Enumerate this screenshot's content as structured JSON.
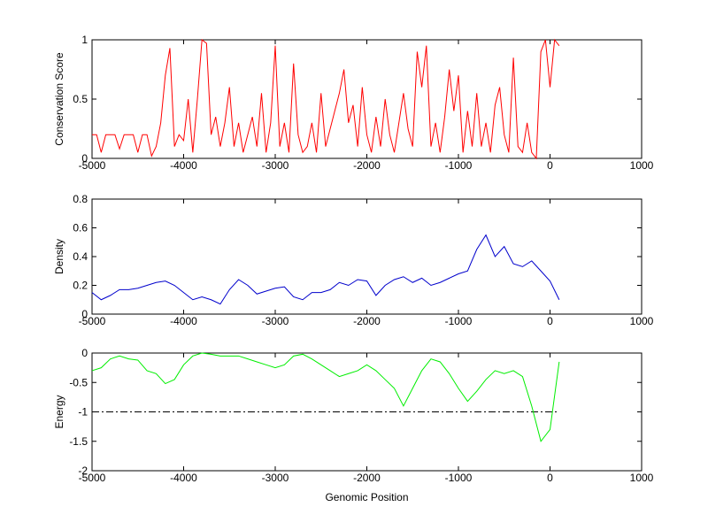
{
  "chart_data": [
    {
      "type": "line",
      "ylabel": "Conservation Score",
      "xlim": [
        -5000,
        1000
      ],
      "xticks": [
        -5000,
        -4000,
        -3000,
        -2000,
        -1000,
        0,
        1000
      ],
      "ylim": [
        0,
        1
      ],
      "yticks": [
        0,
        0.5,
        1
      ],
      "x": [
        -5000,
        -4950,
        -4900,
        -4850,
        -4800,
        -4750,
        -4700,
        -4650,
        -4600,
        -4550,
        -4500,
        -4450,
        -4400,
        -4350,
        -4300,
        -4250,
        -4200,
        -4150,
        -4100,
        -4050,
        -4000,
        -3950,
        -3900,
        -3850,
        -3800,
        -3750,
        -3700,
        -3650,
        -3600,
        -3550,
        -3500,
        -3450,
        -3400,
        -3350,
        -3300,
        -3250,
        -3200,
        -3150,
        -3100,
        -3050,
        -3000,
        -2950,
        -2900,
        -2850,
        -2800,
        -2750,
        -2700,
        -2650,
        -2600,
        -2550,
        -2500,
        -2450,
        -2400,
        -2350,
        -2300,
        -2250,
        -2200,
        -2150,
        -2100,
        -2050,
        -2000,
        -1950,
        -1900,
        -1850,
        -1800,
        -1750,
        -1700,
        -1650,
        -1600,
        -1550,
        -1500,
        -1450,
        -1400,
        -1350,
        -1300,
        -1250,
        -1200,
        -1150,
        -1100,
        -1050,
        -1000,
        -950,
        -900,
        -850,
        -800,
        -750,
        -700,
        -650,
        -600,
        -550,
        -500,
        -450,
        -400,
        -350,
        -300,
        -250,
        -200,
        -150,
        -100,
        -50,
        0,
        50,
        100
      ],
      "series": [
        {
          "color": "#ff0000",
          "values": [
            0.2,
            0.2,
            0.05,
            0.2,
            0.2,
            0.2,
            0.08,
            0.2,
            0.2,
            0.2,
            0.05,
            0.2,
            0.2,
            0.02,
            0.1,
            0.3,
            0.7,
            0.93,
            0.1,
            0.2,
            0.15,
            0.5,
            0.05,
            0.5,
            1,
            0.97,
            0.2,
            0.35,
            0.1,
            0.3,
            0.6,
            0.1,
            0.3,
            0.05,
            0.2,
            0.35,
            0.1,
            0.55,
            0.05,
            0.3,
            0.95,
            0.1,
            0.3,
            0.05,
            0.8,
            0.2,
            0.05,
            0.1,
            0.3,
            0.05,
            0.55,
            0.1,
            0.25,
            0.4,
            0.55,
            0.75,
            0.3,
            0.45,
            0.1,
            0.6,
            0.2,
            0.05,
            0.35,
            0.1,
            0.5,
            0.2,
            0.05,
            0.3,
            0.55,
            0.25,
            0.1,
            0.9,
            0.6,
            0.95,
            0.1,
            0.3,
            0.05,
            0.35,
            0.75,
            0.4,
            0.7,
            0.05,
            0.4,
            0.1,
            0.55,
            0.1,
            0.3,
            0.05,
            0.45,
            0.6,
            0.2,
            0.05,
            0.85,
            0.1,
            0.05,
            0.3,
            0.05,
            0,
            0.9,
            1,
            0.6,
            1,
            0.95
          ]
        }
      ]
    },
    {
      "type": "line",
      "ylabel": "Density",
      "xlim": [
        -5000,
        1000
      ],
      "xticks": [
        -5000,
        -4000,
        -3000,
        -2000,
        -1000,
        0,
        1000
      ],
      "ylim": [
        0,
        0.8
      ],
      "yticks": [
        0,
        0.2,
        0.4,
        0.6,
        0.8
      ],
      "x": [
        -5000,
        -4900,
        -4800,
        -4700,
        -4600,
        -4500,
        -4400,
        -4300,
        -4200,
        -4100,
        -4000,
        -3900,
        -3800,
        -3700,
        -3600,
        -3500,
        -3400,
        -3300,
        -3200,
        -3100,
        -3000,
        -2900,
        -2800,
        -2700,
        -2600,
        -2500,
        -2400,
        -2300,
        -2200,
        -2100,
        -2000,
        -1900,
        -1800,
        -1700,
        -1600,
        -1500,
        -1400,
        -1300,
        -1200,
        -1100,
        -1000,
        -900,
        -800,
        -700,
        -600,
        -500,
        -400,
        -300,
        -200,
        -100,
        0,
        100
      ],
      "series": [
        {
          "color": "#0000cc",
          "values": [
            0.15,
            0.1,
            0.13,
            0.17,
            0.17,
            0.18,
            0.2,
            0.22,
            0.23,
            0.2,
            0.15,
            0.1,
            0.12,
            0.1,
            0.07,
            0.17,
            0.24,
            0.2,
            0.14,
            0.16,
            0.18,
            0.19,
            0.12,
            0.1,
            0.15,
            0.15,
            0.17,
            0.22,
            0.2,
            0.24,
            0.23,
            0.13,
            0.2,
            0.24,
            0.26,
            0.22,
            0.25,
            0.2,
            0.22,
            0.25,
            0.28,
            0.3,
            0.45,
            0.55,
            0.4,
            0.47,
            0.35,
            0.33,
            0.37,
            0.3,
            0.23,
            0.1
          ]
        }
      ]
    },
    {
      "type": "line",
      "ylabel": "Energy",
      "xlabel": "Genomic Position",
      "xlim": [
        -5000,
        1000
      ],
      "xticks": [
        -5000,
        -4000,
        -3000,
        -2000,
        -1000,
        0,
        1000
      ],
      "ylim": [
        -2,
        0
      ],
      "yticks": [
        -2,
        -1.5,
        -1,
        -0.5,
        0
      ],
      "x": [
        -5000,
        -4900,
        -4800,
        -4700,
        -4600,
        -4500,
        -4400,
        -4300,
        -4200,
        -4100,
        -4000,
        -3900,
        -3800,
        -3700,
        -3600,
        -3500,
        -3400,
        -3300,
        -3200,
        -3100,
        -3000,
        -2900,
        -2800,
        -2700,
        -2600,
        -2500,
        -2400,
        -2300,
        -2200,
        -2100,
        -2000,
        -1900,
        -1800,
        -1700,
        -1600,
        -1500,
        -1400,
        -1300,
        -1200,
        -1100,
        -1000,
        -900,
        -800,
        -700,
        -600,
        -500,
        -400,
        -300,
        -200,
        -100,
        0,
        100
      ],
      "series": [
        {
          "color": "#00ee00",
          "values": [
            -0.3,
            -0.25,
            -0.1,
            -0.05,
            -0.1,
            -0.12,
            -0.3,
            -0.35,
            -0.52,
            -0.45,
            -0.2,
            -0.05,
            0,
            -0.02,
            -0.05,
            -0.05,
            -0.05,
            -0.1,
            -0.15,
            -0.2,
            -0.25,
            -0.2,
            -0.05,
            -0.02,
            -0.1,
            -0.2,
            -0.3,
            -0.4,
            -0.35,
            -0.3,
            -0.2,
            -0.3,
            -0.45,
            -0.6,
            -0.9,
            -0.6,
            -0.3,
            -0.1,
            -0.15,
            -0.35,
            -0.6,
            -0.82,
            -0.65,
            -0.45,
            -0.3,
            -0.35,
            -0.3,
            -0.4,
            -0.9,
            -1.5,
            -1.3,
            -0.15
          ]
        }
      ],
      "hline": {
        "y": -1,
        "x": [
          -5000,
          100
        ],
        "color": "#000000"
      }
    }
  ]
}
